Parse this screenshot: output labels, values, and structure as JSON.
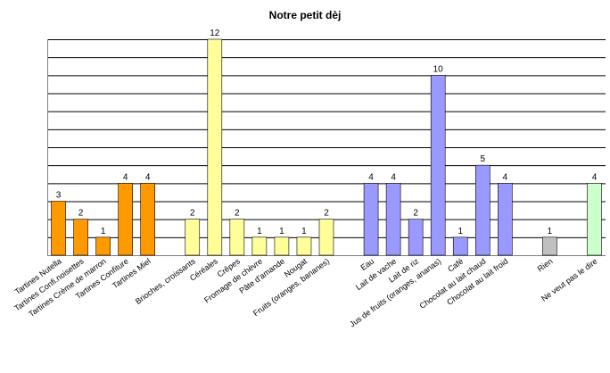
{
  "chart_data": {
    "type": "bar",
    "title": "Notre petit dèj",
    "xlabel": "",
    "ylabel": "",
    "ylim": [
      0,
      12
    ],
    "grid": true,
    "legend": "none",
    "categories": [
      "Tartines Nutella",
      "Tartines Confi.noisettes",
      "Tartines Crème de marron",
      "Tartines Confiture",
      "Tartines Miel",
      "",
      "Brioches, croissants",
      "Céréales",
      "Crêpes",
      "Fromage de chèvre",
      "Pâte d'amande",
      "Nougat",
      "Fruits (oranges, bananes)",
      "",
      "Eau",
      "Lait de vache",
      "Lait de riz",
      "Jus de fruits (oranges, ananas)",
      "Café",
      "Chocolat au lait chaud",
      "Chocolat au lait froid",
      "",
      "Rien",
      "",
      "Ne veut pas le dire"
    ],
    "values": [
      3,
      2,
      1,
      4,
      4,
      null,
      2,
      12,
      2,
      1,
      1,
      1,
      2,
      null,
      4,
      4,
      2,
      10,
      1,
      5,
      4,
      null,
      1,
      null,
      4
    ],
    "colors": [
      "#ff9900",
      "#ff9900",
      "#ff9900",
      "#ff9900",
      "#ff9900",
      "",
      "#ffff99",
      "#ffff99",
      "#ffff99",
      "#ffff99",
      "#ffff99",
      "#ffff99",
      "#ffff99",
      "",
      "#9999ff",
      "#9999ff",
      "#9999ff",
      "#9999ff",
      "#9999ff",
      "#9999ff",
      "#9999ff",
      "",
      "#c0c0c0",
      "",
      "#ccffcc"
    ]
  }
}
